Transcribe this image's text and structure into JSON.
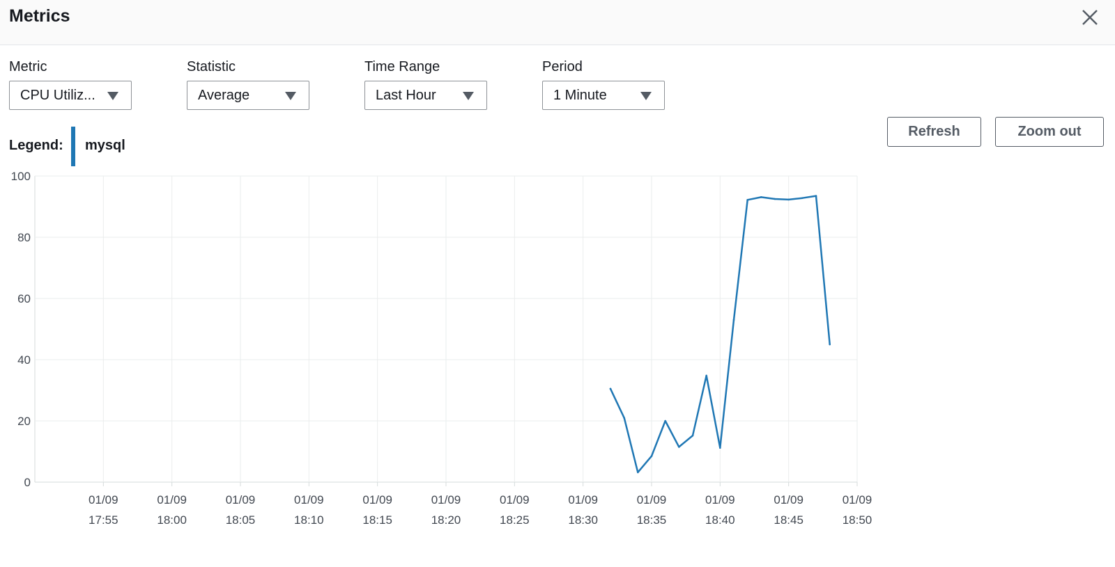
{
  "header": {
    "title": "Metrics",
    "close_icon": "close-icon"
  },
  "controls": [
    {
      "label": "Metric",
      "value": "CPU Utiliz..."
    },
    {
      "label": "Statistic",
      "value": "Average"
    },
    {
      "label": "Time Range",
      "value": "Last Hour"
    },
    {
      "label": "Period",
      "value": "1 Minute"
    }
  ],
  "buttons": {
    "refresh": "Refresh",
    "zoom_out": "Zoom out"
  },
  "legend": {
    "label": "Legend:",
    "series_name": "mysql",
    "series_color": "#1f77b4"
  },
  "chart_data": {
    "type": "line",
    "title": "",
    "xlabel": "",
    "ylabel": "",
    "ylim": [
      0,
      100
    ],
    "xlim": [
      "01/09 17:50",
      "01/09 18:50"
    ],
    "yticks": [
      "0",
      "20",
      "40",
      "60",
      "80",
      "100"
    ],
    "xticks": [
      {
        "date": "01/09",
        "time": "17:55"
      },
      {
        "date": "01/09",
        "time": "18:00"
      },
      {
        "date": "01/09",
        "time": "18:05"
      },
      {
        "date": "01/09",
        "time": "18:10"
      },
      {
        "date": "01/09",
        "time": "18:15"
      },
      {
        "date": "01/09",
        "time": "18:20"
      },
      {
        "date": "01/09",
        "time": "18:25"
      },
      {
        "date": "01/09",
        "time": "18:30"
      },
      {
        "date": "01/09",
        "time": "18:35"
      },
      {
        "date": "01/09",
        "time": "18:40"
      },
      {
        "date": "01/09",
        "time": "18:45"
      },
      {
        "date": "01/09",
        "time": "18:50"
      }
    ],
    "grid": true,
    "series": [
      {
        "name": "mysql",
        "color": "#1f77b4",
        "points": [
          {
            "x": "18:32",
            "y": 30.5
          },
          {
            "x": "18:33",
            "y": 21
          },
          {
            "x": "18:34",
            "y": 3.2
          },
          {
            "x": "18:35",
            "y": 8.5
          },
          {
            "x": "18:36",
            "y": 20
          },
          {
            "x": "18:37",
            "y": 11.5
          },
          {
            "x": "18:38",
            "y": 15.2
          },
          {
            "x": "18:39",
            "y": 34.8
          },
          {
            "x": "18:40",
            "y": 11.2
          },
          {
            "x": "18:41",
            "y": 53
          },
          {
            "x": "18:42",
            "y": 92.2
          },
          {
            "x": "18:43",
            "y": 93.1
          },
          {
            "x": "18:44",
            "y": 92.5
          },
          {
            "x": "18:45",
            "y": 92.3
          },
          {
            "x": "18:46",
            "y": 92.8
          },
          {
            "x": "18:47",
            "y": 93.5
          },
          {
            "x": "18:48",
            "y": 45
          }
        ]
      }
    ]
  }
}
